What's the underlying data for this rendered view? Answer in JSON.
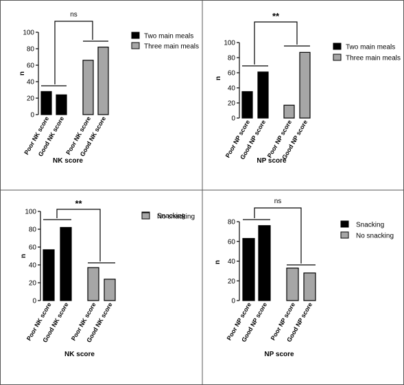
{
  "colors": {
    "series_black": "#000000",
    "series_gray": "#a6a6a6",
    "bar_stroke": "#000000",
    "axis": "#000000",
    "panel_border": "#555555",
    "background": "#ffffff"
  },
  "chart_data": [
    {
      "type": "bar",
      "xlabel": "NK score",
      "ylabel": "n",
      "ylim": [
        0,
        100
      ],
      "yticks": [
        0,
        20,
        40,
        60,
        80,
        100
      ],
      "grid": false,
      "legend_position": "right",
      "significance": "ns",
      "groups": [
        {
          "series": "Two main meals",
          "categories": [
            "Poor NK score",
            "Good NK score"
          ],
          "values": [
            28,
            24
          ]
        },
        {
          "series": "Three main meals",
          "categories": [
            "Poor NK score",
            "Good NK score"
          ],
          "values": [
            66,
            82
          ]
        }
      ],
      "series": [
        {
          "name": "Two main meals",
          "color": "#000000"
        },
        {
          "name": "Three main meals",
          "color": "#a6a6a6"
        }
      ]
    },
    {
      "type": "bar",
      "xlabel": "NP score",
      "ylabel": "n",
      "ylim": [
        0,
        100
      ],
      "yticks": [
        0,
        20,
        40,
        60,
        80,
        100
      ],
      "grid": false,
      "legend_position": "right",
      "significance": "**",
      "groups": [
        {
          "series": "Two main meals",
          "categories": [
            "Poor NP score",
            "Good NP score"
          ],
          "values": [
            35,
            61
          ]
        },
        {
          "series": "Three main meals",
          "categories": [
            "Poor NP score",
            "Good NP score"
          ],
          "values": [
            17,
            87
          ]
        }
      ],
      "series": [
        {
          "name": "Two main meals",
          "color": "#000000"
        },
        {
          "name": "Three main meals",
          "color": "#a6a6a6"
        }
      ]
    },
    {
      "type": "bar",
      "xlabel": "NK score",
      "ylabel": "n",
      "ylim": [
        0,
        100
      ],
      "yticks": [
        0,
        20,
        40,
        60,
        80,
        100
      ],
      "grid": false,
      "legend_position": "right",
      "significance": "**",
      "groups": [
        {
          "series": "Snacking",
          "categories": [
            "Poor NK score",
            "Good NK score"
          ],
          "values": [
            57,
            82
          ]
        },
        {
          "series": "No snacking",
          "categories": [
            "Poor NK score",
            "Good NK score"
          ],
          "values": [
            37,
            24
          ]
        }
      ],
      "series": [
        {
          "name": "Snacking",
          "color": "#000000"
        },
        {
          "name": "No snacking",
          "color": "#a6a6a6"
        }
      ]
    },
    {
      "type": "bar",
      "xlabel": "NP score",
      "ylabel": "n",
      "ylim": [
        0,
        80
      ],
      "yticks": [
        0,
        20,
        40,
        60,
        80
      ],
      "grid": false,
      "legend_position": "right",
      "significance": "ns",
      "groups": [
        {
          "series": "Snacking",
          "categories": [
            "Poor NP score",
            "Good NP score"
          ],
          "values": [
            63,
            76
          ]
        },
        {
          "series": "No snacking",
          "categories": [
            "Poor NP score",
            "Good NP score"
          ],
          "values": [
            33,
            28
          ]
        }
      ],
      "series": [
        {
          "name": "Snacking",
          "color": "#000000"
        },
        {
          "name": "No snacking",
          "color": "#a6a6a6"
        }
      ]
    }
  ]
}
